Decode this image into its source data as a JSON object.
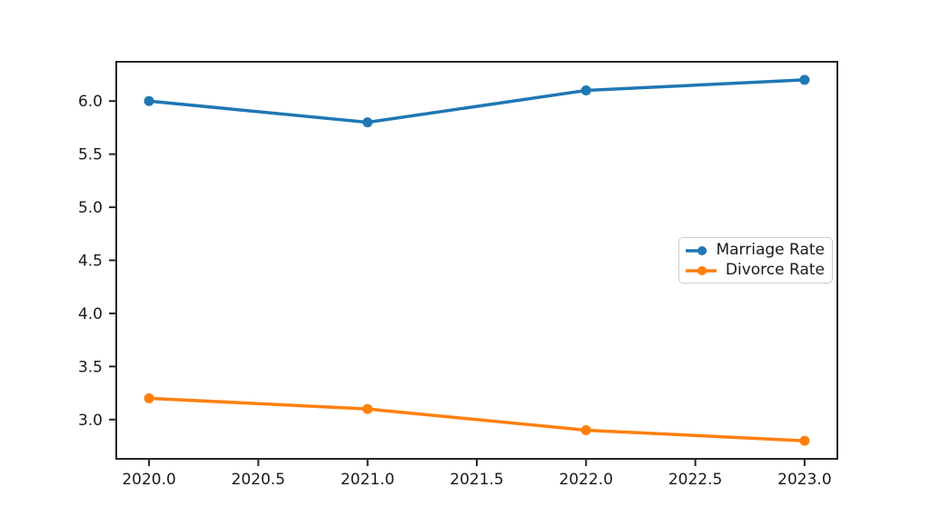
{
  "chart_data": {
    "type": "line",
    "title": "",
    "xlabel": "",
    "ylabel": "",
    "x": [
      2020,
      2021,
      2022,
      2023
    ],
    "series": [
      {
        "name": "Marriage Rate",
        "values": [
          6.0,
          5.8,
          6.1,
          6.2
        ],
        "color": "#1f77b4"
      },
      {
        "name": "Divorce Rate",
        "values": [
          3.2,
          3.1,
          2.9,
          2.8
        ],
        "color": "#ff7f0e"
      }
    ],
    "xlim": [
      2019.85,
      2023.15
    ],
    "ylim": [
      2.63,
      6.37
    ],
    "xticks": {
      "values": [
        2020.0,
        2020.5,
        2021.0,
        2021.5,
        2022.0,
        2022.5,
        2023.0
      ],
      "labels": [
        "2020.0",
        "2020.5",
        "2021.0",
        "2021.5",
        "2022.0",
        "2022.5",
        "2023.0"
      ]
    },
    "yticks": {
      "values": [
        3.0,
        3.5,
        4.0,
        4.5,
        5.0,
        5.5,
        6.0
      ],
      "labels": [
        "3.0",
        "3.5",
        "4.0",
        "4.5",
        "5.0",
        "5.5",
        "6.0"
      ]
    },
    "grid": false,
    "legend_position": "center right",
    "legend": [
      "Marriage Rate",
      "Divorce Rate"
    ]
  },
  "figure": {
    "background": "#ffffff",
    "axes_color": "#262626",
    "tick_label_color": "#1a1a1a",
    "legend_border_color": "#cccccc"
  }
}
